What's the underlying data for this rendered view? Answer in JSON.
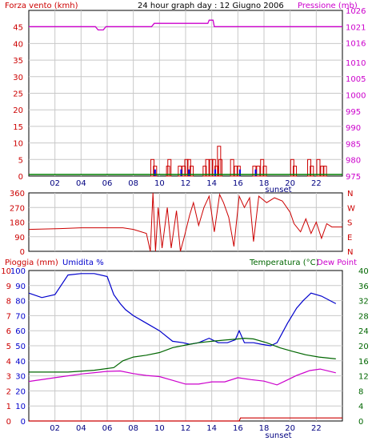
{
  "chart_data": [
    {
      "type": "bar",
      "title": "24 hour graph day : 12 Giugno 2006",
      "left_axis": {
        "label": "Forza vento (kmh)",
        "ticks": [
          0,
          5,
          10,
          15,
          20,
          25,
          30,
          35,
          40,
          45
        ],
        "color": "#cc0000",
        "ylim": [
          0,
          50
        ]
      },
      "right_axis": {
        "label": "Pressione (mb)",
        "ticks": [
          975,
          980,
          985,
          990,
          995,
          1000,
          1005,
          1010,
          1016,
          1021,
          1026
        ],
        "color": "#cc00cc",
        "ylim": [
          975,
          1026
        ]
      },
      "x_ticks": [
        "02",
        "04",
        "06",
        "08",
        "10",
        "12",
        "14",
        "16",
        "18",
        "20",
        "22"
      ],
      "x_marker": "sunset",
      "grid": true,
      "series": [],
      "wind_speed": [
        [
          9.4,
          5
        ],
        [
          9.6,
          3
        ],
        [
          10.6,
          3
        ],
        [
          10.7,
          5
        ],
        [
          11.5,
          3
        ],
        [
          11.8,
          3
        ],
        [
          12.0,
          5
        ],
        [
          12.2,
          5
        ],
        [
          12.4,
          3
        ],
        [
          13.4,
          3
        ],
        [
          13.6,
          5
        ],
        [
          13.9,
          5
        ],
        [
          14.1,
          5
        ],
        [
          14.3,
          3
        ],
        [
          14.5,
          9
        ],
        [
          14.6,
          5
        ],
        [
          15.5,
          5
        ],
        [
          15.8,
          3
        ],
        [
          16.0,
          3
        ],
        [
          17.2,
          3
        ],
        [
          17.5,
          3
        ],
        [
          17.8,
          5
        ],
        [
          18.0,
          3
        ],
        [
          20.1,
          5
        ],
        [
          20.3,
          3
        ],
        [
          21.4,
          5
        ],
        [
          21.6,
          3
        ],
        [
          22.1,
          5
        ],
        [
          22.4,
          3
        ],
        [
          22.6,
          3
        ]
      ],
      "wind_gust": [
        [
          9.6,
          2
        ],
        [
          11.6,
          2
        ],
        [
          12.2,
          2
        ],
        [
          14.2,
          2
        ],
        [
          16.1,
          2
        ],
        [
          17.3,
          2
        ]
      ],
      "pressure": [
        [
          0,
          1021
        ],
        [
          5.1,
          1021
        ],
        [
          5.3,
          1020
        ],
        [
          5.7,
          1020
        ],
        [
          5.9,
          1021
        ],
        [
          9.4,
          1021
        ],
        [
          9.6,
          1022
        ],
        [
          13.7,
          1022
        ],
        [
          13.8,
          1023
        ],
        [
          14.1,
          1023
        ],
        [
          14.2,
          1021
        ],
        [
          24,
          1021
        ]
      ],
      "baseline": 0
    },
    {
      "type": "line",
      "right_axis": {
        "labels": [
          "N",
          "W",
          "S",
          "E",
          "N"
        ],
        "color": "#cc0000"
      },
      "left_axis": {
        "ticks": [
          0,
          90,
          180,
          270,
          360
        ],
        "ylim": [
          0,
          360
        ]
      },
      "series": [
        {
          "color": "#cc0000",
          "values": [
            [
              0,
              135
            ],
            [
              2.4,
              140
            ],
            [
              4.0,
              145
            ],
            [
              7.2,
              145
            ],
            [
              8.0,
              135
            ],
            [
              9.0,
              110
            ],
            [
              9.3,
              0
            ],
            [
              9.5,
              360
            ],
            [
              9.7,
              0
            ],
            [
              9.9,
              270
            ],
            [
              10.2,
              20
            ],
            [
              10.6,
              270
            ],
            [
              10.9,
              20
            ],
            [
              11.3,
              250
            ],
            [
              11.6,
              0
            ],
            [
              11.9,
              90
            ],
            [
              12.3,
              220
            ],
            [
              12.6,
              300
            ],
            [
              13.0,
              160
            ],
            [
              13.4,
              270
            ],
            [
              13.8,
              340
            ],
            [
              14.2,
              120
            ],
            [
              14.6,
              350
            ],
            [
              14.9,
              300
            ],
            [
              15.3,
              210
            ],
            [
              15.7,
              30
            ],
            [
              16.1,
              340
            ],
            [
              16.5,
              270
            ],
            [
              16.9,
              330
            ],
            [
              17.2,
              60
            ],
            [
              17.6,
              340
            ],
            [
              18.2,
              300
            ],
            [
              18.8,
              330
            ],
            [
              19.4,
              310
            ],
            [
              20.0,
              240
            ],
            [
              20.3,
              170
            ],
            [
              20.8,
              120
            ],
            [
              21.2,
              200
            ],
            [
              21.6,
              110
            ],
            [
              22.0,
              180
            ],
            [
              22.4,
              80
            ],
            [
              22.8,
              170
            ],
            [
              23.2,
              150
            ],
            [
              24,
              150
            ]
          ]
        }
      ],
      "grid": true
    },
    {
      "type": "line",
      "left_axis": {
        "label": "Pioggia (mm) Umidita %",
        "rain_ticks": [
          0,
          1,
          2,
          3,
          4,
          5,
          6,
          7,
          8,
          9,
          10
        ],
        "humidity_ticks": [
          0,
          10,
          20,
          30,
          40,
          50,
          60,
          70,
          80,
          90,
          100
        ],
        "ylim": [
          0,
          100
        ]
      },
      "right_axis": {
        "label": "Temperatura (°C)Dew Point",
        "ticks": [
          0,
          4,
          8,
          12,
          16,
          20,
          24,
          28,
          32,
          36,
          40
        ],
        "ylim": [
          0,
          40
        ],
        "color": "#006600"
      },
      "x_ticks": [
        "02",
        "04",
        "06",
        "08",
        "10",
        "12",
        "14",
        "16",
        "18",
        "20",
        "22"
      ],
      "x_marker": "sunset",
      "grid": true,
      "series": [
        {
          "name": "Umidita %",
          "color": "#0000cc",
          "values": [
            [
              0,
              85
            ],
            [
              1,
              82
            ],
            [
              2,
              84
            ],
            [
              3,
              97
            ],
            [
              4,
              98
            ],
            [
              5,
              98
            ],
            [
              6,
              96
            ],
            [
              6.5,
              84
            ],
            [
              7.0,
              78
            ],
            [
              7.4,
              74
            ],
            [
              8,
              70
            ],
            [
              9,
              65
            ],
            [
              10,
              60
            ],
            [
              11,
              53
            ],
            [
              11.8,
              52
            ],
            [
              12.3,
              51
            ],
            [
              13,
              52
            ],
            [
              13.8,
              55
            ],
            [
              14.5,
              52
            ],
            [
              15.2,
              52
            ],
            [
              15.8,
              54
            ],
            [
              16.1,
              60
            ],
            [
              16.5,
              52
            ],
            [
              17.2,
              52
            ],
            [
              17.8,
              51
            ],
            [
              18.5,
              50
            ],
            [
              19.0,
              52
            ],
            [
              19.8,
              65
            ],
            [
              20.5,
              75
            ],
            [
              21.0,
              80
            ],
            [
              21.6,
              85
            ],
            [
              22.4,
              83
            ],
            [
              23.5,
              78
            ]
          ]
        },
        {
          "name": "Temperatura (°C)",
          "color": "#006600",
          "values": [
            [
              0,
              13
            ],
            [
              3,
              13
            ],
            [
              5,
              13.5
            ],
            [
              6.5,
              14.2
            ],
            [
              7.2,
              16
            ],
            [
              8,
              17
            ],
            [
              9,
              17.5
            ],
            [
              10,
              18.2
            ],
            [
              11,
              19.5
            ],
            [
              12,
              20.2
            ],
            [
              13,
              20.8
            ],
            [
              14,
              21.2
            ],
            [
              15,
              21.5
            ],
            [
              16,
              21.8
            ],
            [
              16.5,
              22
            ],
            [
              17.2,
              21.8
            ],
            [
              18.2,
              20.8
            ],
            [
              19.2,
              19.5
            ],
            [
              20.2,
              18.5
            ],
            [
              21.2,
              17.6
            ],
            [
              22.2,
              17
            ],
            [
              23.5,
              16.5
            ]
          ]
        },
        {
          "name": "Dew Point",
          "color": "#cc00cc",
          "values": [
            [
              0,
              10.5
            ],
            [
              2,
              11.5
            ],
            [
              4,
              12.5
            ],
            [
              6,
              13.2
            ],
            [
              7,
              13.3
            ],
            [
              8,
              12.6
            ],
            [
              9,
              12.1
            ],
            [
              10,
              11.8
            ],
            [
              11,
              10.8
            ],
            [
              12,
              9.8
            ],
            [
              13,
              9.8
            ],
            [
              14,
              10.4
            ],
            [
              15,
              10.4
            ],
            [
              16,
              11.5
            ],
            [
              17,
              11
            ],
            [
              18,
              10.6
            ],
            [
              19,
              9.6
            ],
            [
              19.6,
              10.6
            ],
            [
              20.5,
              12.1
            ],
            [
              21.5,
              13.4
            ],
            [
              22.3,
              13.8
            ],
            [
              23.5,
              12.8
            ]
          ]
        },
        {
          "name": "Pioggia (mm)",
          "color": "#cc0000",
          "values": [
            [
              0,
              0
            ],
            [
              16.1,
              0
            ],
            [
              16.2,
              0.2
            ],
            [
              24,
              0.2
            ]
          ]
        }
      ]
    }
  ]
}
